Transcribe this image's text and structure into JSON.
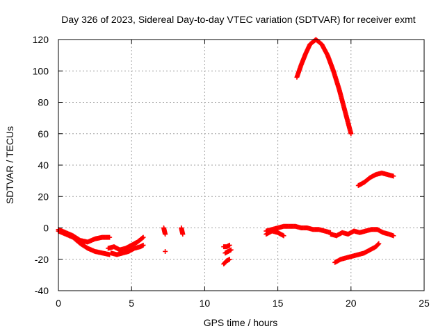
{
  "chart_data": {
    "type": "scatter",
    "title": "Day 326 of 2023, Sidereal Day-to-day VTEC variation (SDTVAR) for receiver exmt",
    "xlabel": "GPS time / hours",
    "ylabel": "SDTVAR / TECUs",
    "xlim": [
      0,
      25
    ],
    "ylim": [
      -40,
      120
    ],
    "xticks": [
      0,
      5,
      10,
      15,
      20,
      25
    ],
    "yticks": [
      -40,
      -20,
      0,
      20,
      40,
      60,
      80,
      100,
      120
    ],
    "grid": true,
    "marker": "+",
    "color": "#ff0000",
    "series": [
      {
        "name": "arc-1-upper",
        "x": [
          0,
          0.5,
          1,
          1.5,
          2,
          2.5,
          3,
          3.5
        ],
        "y": [
          -1,
          -3,
          -5,
          -8,
          -9,
          -7,
          -6,
          -6
        ]
      },
      {
        "name": "arc-1-lower",
        "x": [
          0,
          0.5,
          1,
          1.5,
          2,
          2.5,
          3,
          3.5
        ],
        "y": [
          -2,
          -4,
          -6,
          -10,
          -13,
          -15,
          -16,
          -17
        ]
      },
      {
        "name": "arc-2",
        "x": [
          3.4,
          3.8,
          4.2,
          4.6,
          5.0,
          5.4,
          5.8
        ],
        "y": [
          -13,
          -12,
          -14,
          -13,
          -11,
          -9,
          -6
        ]
      },
      {
        "name": "arc-2-lower",
        "x": [
          3.6,
          4.0,
          4.4,
          4.8,
          5.2,
          5.6,
          5.8
        ],
        "y": [
          -16,
          -17,
          -16,
          -15,
          -13,
          -12,
          -11
        ]
      },
      {
        "name": "arc-3",
        "x": [
          7.2,
          7.25,
          7.3
        ],
        "y": [
          0,
          -2,
          -4
        ]
      },
      {
        "name": "arc-3b",
        "x": [
          7.3
        ],
        "y": [
          -15
        ]
      },
      {
        "name": "arc-4",
        "x": [
          8.4,
          8.45,
          8.5
        ],
        "y": [
          0,
          -2,
          -4
        ]
      },
      {
        "name": "arc-5",
        "x": [
          11.3,
          11.5,
          11.7
        ],
        "y": [
          -12,
          -12,
          -11
        ]
      },
      {
        "name": "arc-5b",
        "x": [
          11.4,
          11.6,
          11.8
        ],
        "y": [
          -16,
          -15,
          -14
        ]
      },
      {
        "name": "arc-5c",
        "x": [
          11.3,
          11.5,
          11.7
        ],
        "y": [
          -23,
          -21,
          -20
        ]
      },
      {
        "name": "arc-6",
        "x": [
          14.2,
          14.6,
          15.0,
          15.4,
          15.8,
          16.2,
          16.6,
          17.0,
          17.4,
          17.8,
          18.2,
          18.6
        ],
        "y": [
          -2,
          -1,
          0,
          1,
          1,
          1,
          0,
          0,
          -1,
          -1,
          -2,
          -3
        ]
      },
      {
        "name": "arc-6b",
        "x": [
          14.2,
          14.6,
          15.0,
          15.4
        ],
        "y": [
          -4,
          -2,
          -3,
          -5
        ]
      },
      {
        "name": "arc-7",
        "x": [
          18.6,
          19.0,
          19.4,
          19.8,
          20.2,
          20.6,
          21.0,
          21.4,
          21.8,
          22.2,
          22.6,
          22.9
        ],
        "y": [
          -4,
          -5,
          -3,
          -4,
          -2,
          -3,
          -2,
          -1,
          -1,
          -3,
          -4,
          -5
        ]
      },
      {
        "name": "arc-8",
        "x": [
          16.3,
          16.6,
          16.9,
          17.2,
          17.6,
          18.0,
          18.4,
          18.8,
          19.2,
          19.6,
          20.0
        ],
        "y": [
          96,
          104,
          111,
          117,
          120,
          117,
          110,
          100,
          88,
          74,
          60
        ]
      },
      {
        "name": "arc-9",
        "x": [
          20.5,
          20.9,
          21.3,
          21.7,
          22.1,
          22.5,
          22.9
        ],
        "y": [
          27,
          29,
          32,
          34,
          35,
          34,
          33
        ]
      },
      {
        "name": "arc-10",
        "x": [
          18.9,
          19.3,
          19.7,
          20.1,
          20.5,
          20.9,
          21.3,
          21.7,
          21.9
        ],
        "y": [
          -22,
          -20,
          -19,
          -18,
          -17,
          -16,
          -14,
          -12,
          -10
        ]
      }
    ]
  }
}
